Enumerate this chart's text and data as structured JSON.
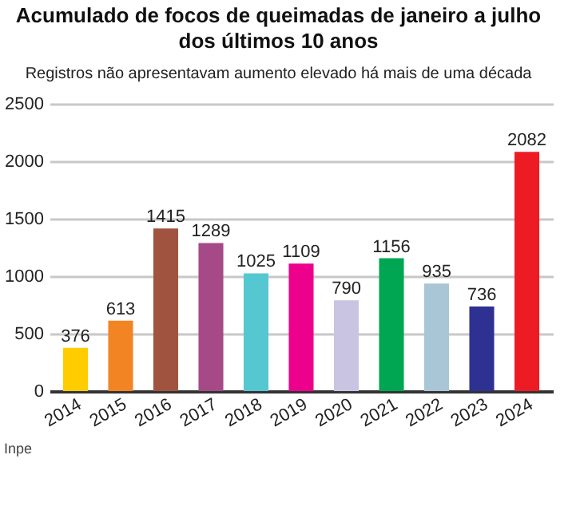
{
  "chart_data": {
    "type": "bar",
    "title": "Acumulado de  focos de queimadas de janeiro a julho\ndos últimos 10 anos",
    "subtitle": "Registros não apresentavam aumento elevado há mais de uma década",
    "categories": [
      "2014",
      "2015",
      "2016",
      "2017",
      "2018",
      "2019",
      "2020",
      "2021",
      "2022",
      "2023",
      "2024"
    ],
    "values": [
      376,
      613,
      1415,
      1289,
      1025,
      1109,
      790,
      1156,
      935,
      736,
      2082
    ],
    "colors": [
      "#ffcc00",
      "#f28424",
      "#a0543f",
      "#a54a86",
      "#55c7d1",
      "#ec008c",
      "#c8c4e2",
      "#00a651",
      "#a9c6d6",
      "#2e3192",
      "#ed1c24"
    ],
    "ylim": [
      0,
      2500
    ],
    "yticks": [
      0,
      500,
      1000,
      1500,
      2000,
      2500
    ],
    "grid": "y",
    "data_labels": true,
    "annotations": [
      "Inpe"
    ]
  }
}
